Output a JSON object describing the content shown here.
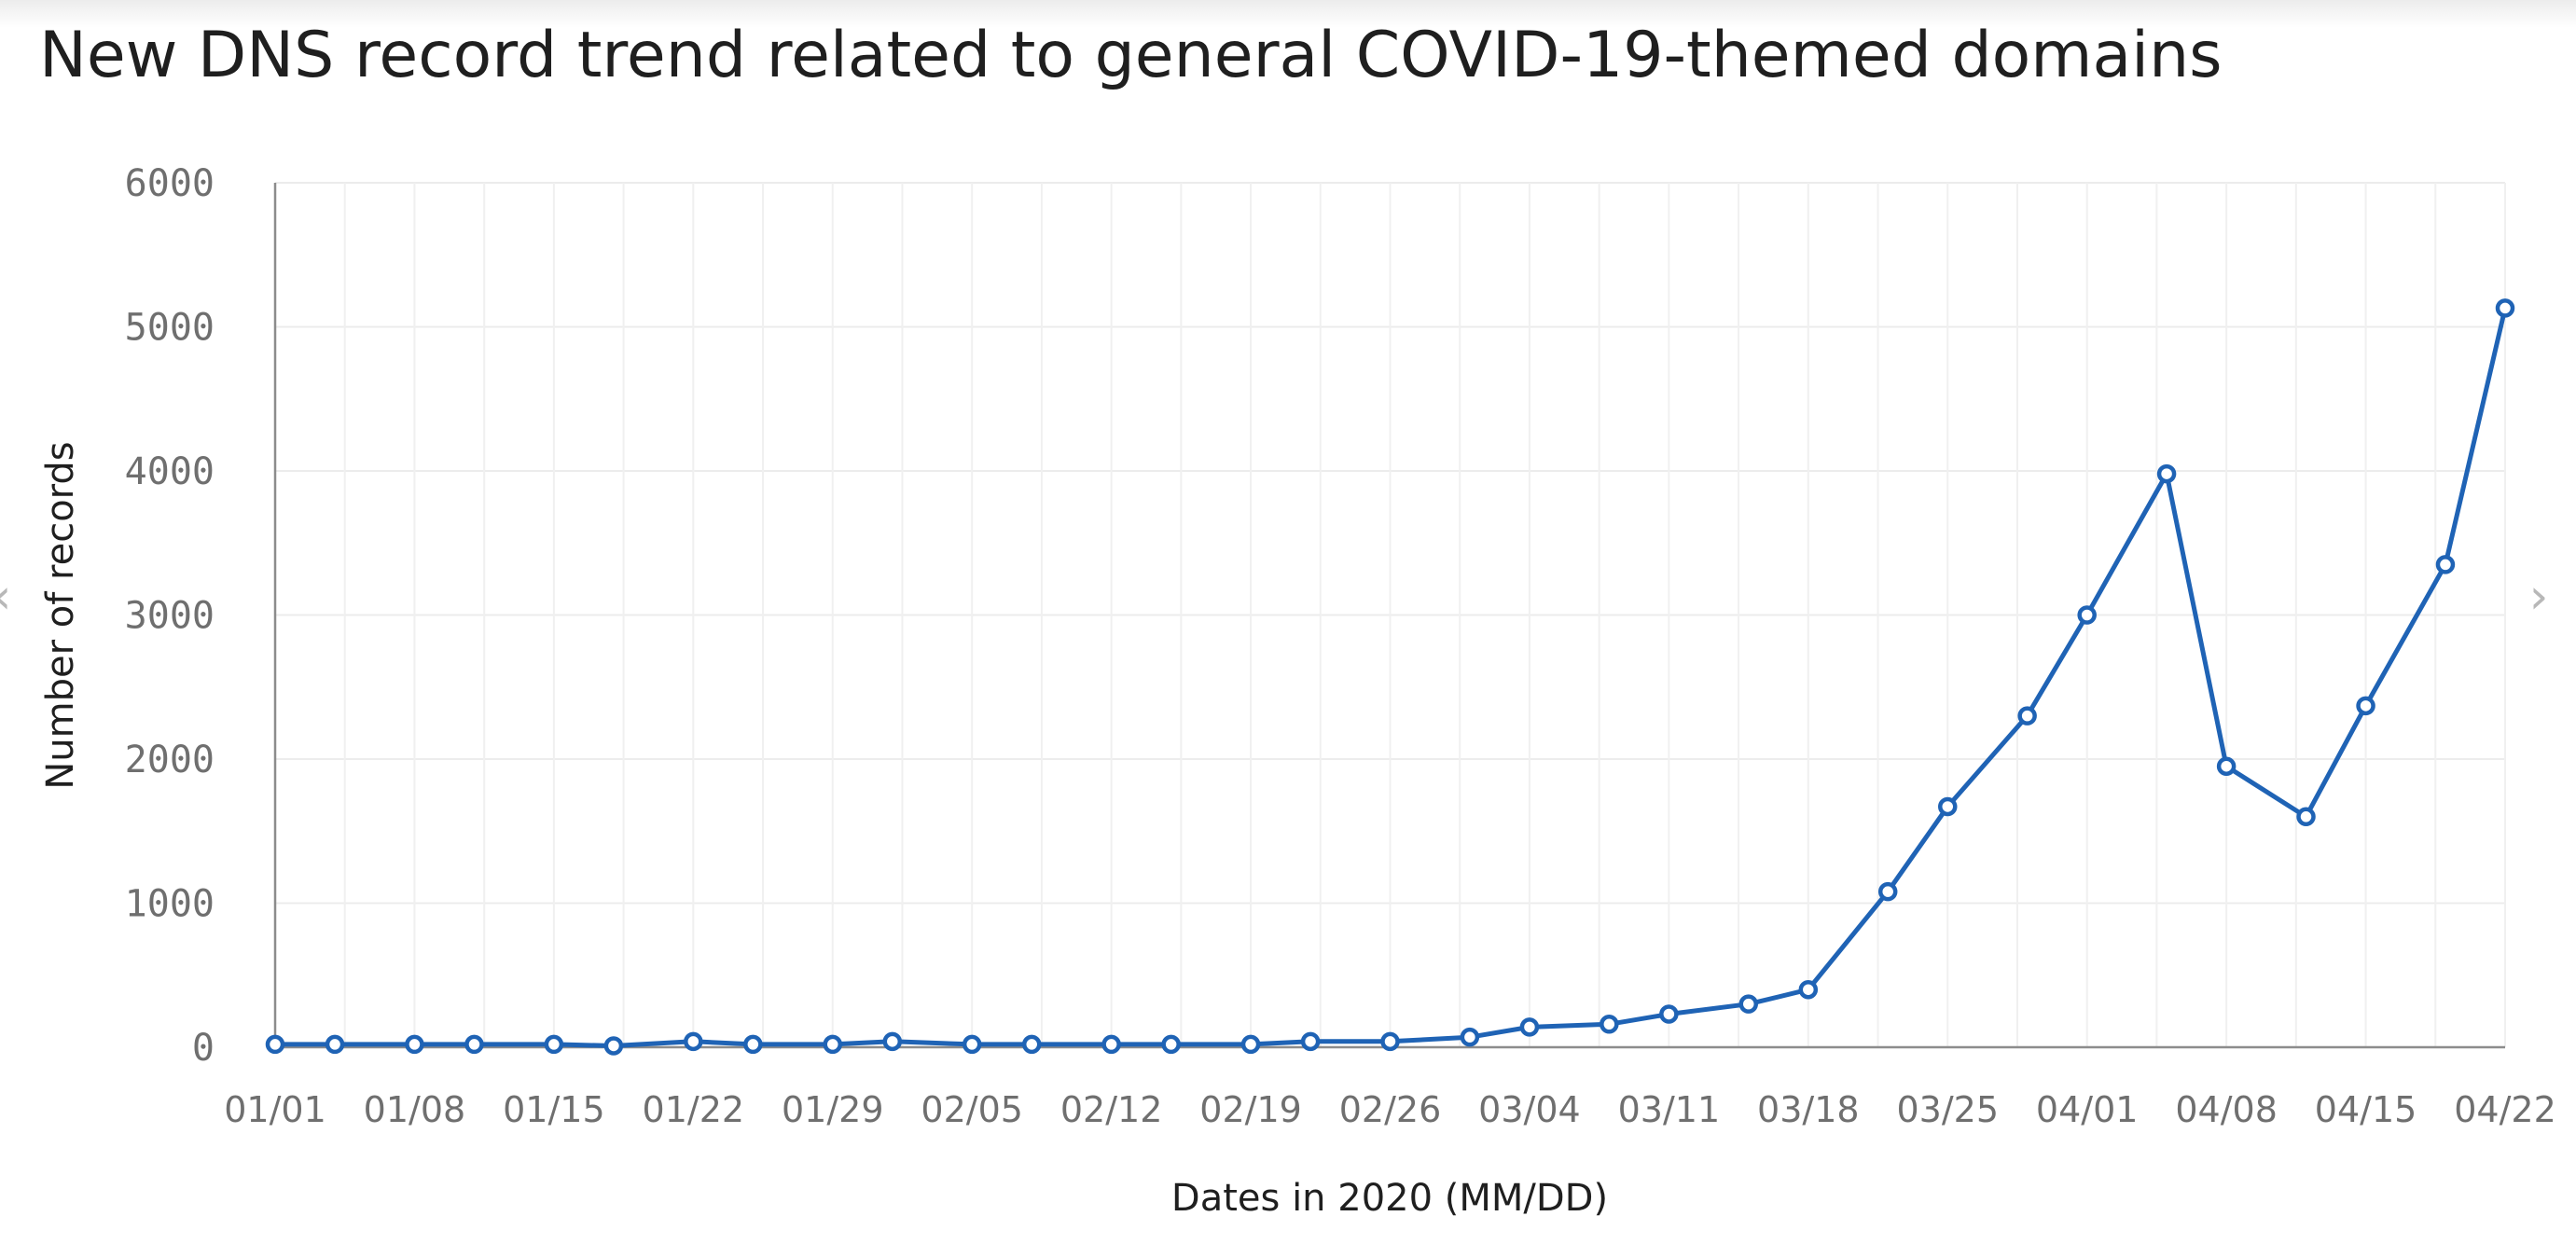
{
  "chart_data": {
    "type": "line",
    "title": "New DNS record trend related to general COVID-19-themed domains",
    "xlabel": "Dates in 2020 (MM/DD)",
    "ylabel": "Number of records",
    "x_tick_labels": [
      "01/01",
      "01/08",
      "01/15",
      "01/22",
      "01/29",
      "02/05",
      "02/12",
      "02/19",
      "02/26",
      "03/04",
      "03/11",
      "03/18",
      "03/25",
      "04/01",
      "04/08",
      "04/15",
      "04/22"
    ],
    "y_ticks": [
      0,
      1000,
      2000,
      3000,
      4000,
      5000,
      6000
    ],
    "ylim": [
      0,
      6000
    ],
    "xlim": [
      "2020-01-01",
      "2020-04-22"
    ],
    "grid": true,
    "series": [
      {
        "color": "#1f63b5",
        "points": [
          {
            "x": "2020-01-01",
            "y": 20
          },
          {
            "x": "2020-01-04",
            "y": 20
          },
          {
            "x": "2020-01-08",
            "y": 20
          },
          {
            "x": "2020-01-11",
            "y": 20
          },
          {
            "x": "2020-01-15",
            "y": 20
          },
          {
            "x": "2020-01-18",
            "y": 10
          },
          {
            "x": "2020-01-22",
            "y": 40
          },
          {
            "x": "2020-01-25",
            "y": 20
          },
          {
            "x": "2020-01-29",
            "y": 20
          },
          {
            "x": "2020-02-01",
            "y": 40
          },
          {
            "x": "2020-02-05",
            "y": 20
          },
          {
            "x": "2020-02-08",
            "y": 20
          },
          {
            "x": "2020-02-12",
            "y": 20
          },
          {
            "x": "2020-02-15",
            "y": 20
          },
          {
            "x": "2020-02-19",
            "y": 20
          },
          {
            "x": "2020-02-22",
            "y": 40
          },
          {
            "x": "2020-02-26",
            "y": 40
          },
          {
            "x": "2020-03-01",
            "y": 70
          },
          {
            "x": "2020-03-04",
            "y": 140
          },
          {
            "x": "2020-03-08",
            "y": 160
          },
          {
            "x": "2020-03-11",
            "y": 230
          },
          {
            "x": "2020-03-15",
            "y": 300
          },
          {
            "x": "2020-03-18",
            "y": 400
          },
          {
            "x": "2020-03-22",
            "y": 1080
          },
          {
            "x": "2020-03-25",
            "y": 1670
          },
          {
            "x": "2020-03-29",
            "y": 2300
          },
          {
            "x": "2020-04-01",
            "y": 3000
          },
          {
            "x": "2020-04-05",
            "y": 3980
          },
          {
            "x": "2020-04-08",
            "y": 1950
          },
          {
            "x": "2020-04-12",
            "y": 1600
          },
          {
            "x": "2020-04-15",
            "y": 2370
          },
          {
            "x": "2020-04-19",
            "y": 3350
          },
          {
            "x": "2020-04-22",
            "y": 5130
          }
        ]
      }
    ]
  },
  "navigation": {
    "prev_icon": "‹",
    "next_icon": "›"
  }
}
